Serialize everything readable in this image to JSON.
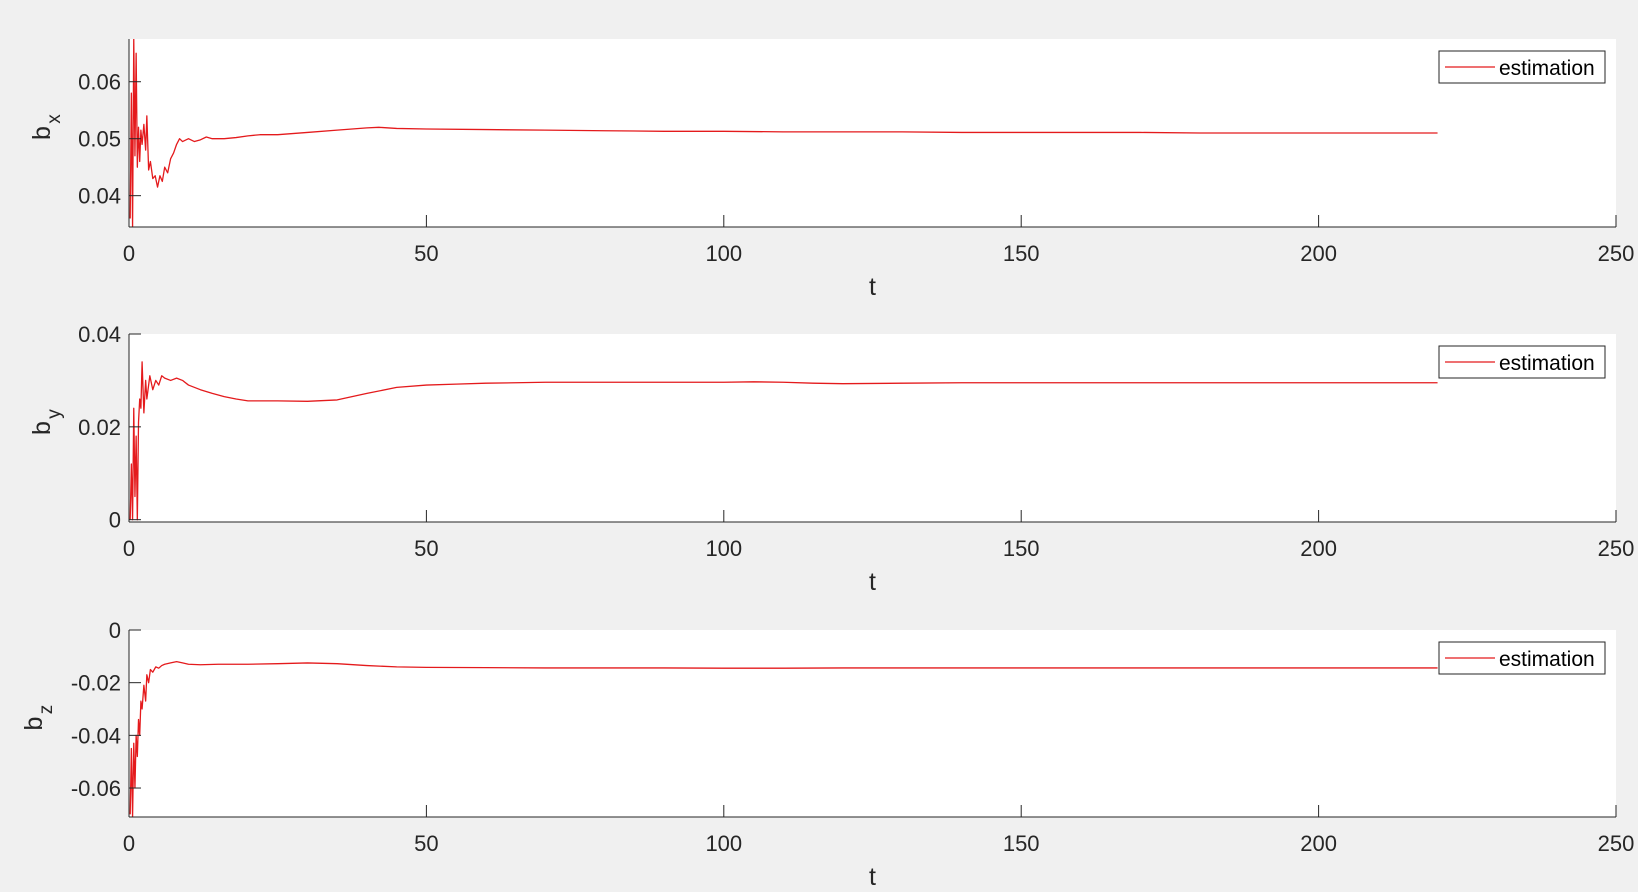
{
  "colors": {
    "figure_background": "#f0f0f0",
    "axes_background": "#ffffff",
    "axis": "#262626",
    "series": "#e41a1c"
  },
  "chart_data": [
    {
      "type": "line",
      "xlabel": "t",
      "ylabel": "b",
      "ylabel_sub": "x",
      "xlim": [
        0,
        250
      ],
      "ylim": [
        0.0345,
        0.0675
      ],
      "xticks": [
        0,
        50,
        100,
        150,
        200,
        250
      ],
      "yticks": [
        0.04,
        0.05,
        0.06
      ],
      "ytick_labels": [
        "0.04",
        "0.05",
        "0.06"
      ],
      "grid": false,
      "legend_position": "top-right",
      "series": [
        {
          "name": "estimation",
          "x": [
            0.2,
            0.4,
            0.6,
            0.8,
            1.0,
            1.2,
            1.4,
            1.6,
            1.8,
            2.0,
            2.2,
            2.5,
            2.8,
            3.0,
            3.3,
            3.6,
            4.0,
            4.4,
            4.8,
            5.2,
            5.6,
            6.0,
            6.5,
            7.0,
            7.5,
            8.0,
            8.5,
            9.0,
            10,
            11,
            12,
            13,
            14,
            16,
            18,
            20,
            22,
            25,
            30,
            35,
            40,
            42,
            45,
            50,
            60,
            70,
            80,
            90,
            100,
            110,
            120,
            130,
            140,
            150,
            160,
            170,
            180,
            190,
            200,
            210,
            220
          ],
          "values": [
            0.036,
            0.058,
            0.0345,
            0.0675,
            0.047,
            0.065,
            0.045,
            0.052,
            0.046,
            0.0515,
            0.049,
            0.0525,
            0.048,
            0.054,
            0.0445,
            0.046,
            0.043,
            0.0435,
            0.0415,
            0.0435,
            0.0425,
            0.045,
            0.044,
            0.0465,
            0.0475,
            0.049,
            0.05,
            0.0495,
            0.05,
            0.0495,
            0.0498,
            0.0503,
            0.05,
            0.05,
            0.0502,
            0.0505,
            0.0507,
            0.0507,
            0.0511,
            0.0515,
            0.0519,
            0.052,
            0.0518,
            0.0517,
            0.0516,
            0.0515,
            0.0514,
            0.0513,
            0.0513,
            0.0512,
            0.0512,
            0.0512,
            0.0511,
            0.0511,
            0.0511,
            0.0511,
            0.051,
            0.051,
            0.051,
            0.051,
            0.051
          ]
        }
      ]
    },
    {
      "type": "line",
      "xlabel": "t",
      "ylabel": "b",
      "ylabel_sub": "y",
      "xlim": [
        0,
        250
      ],
      "ylim": [
        -0.0005,
        0.04
      ],
      "xticks": [
        0,
        50,
        100,
        150,
        200,
        250
      ],
      "yticks": [
        0,
        0.02,
        0.04
      ],
      "ytick_labels": [
        "0",
        "0.02",
        "0.04"
      ],
      "grid": false,
      "legend_position": "top-right",
      "series": [
        {
          "name": "estimation",
          "x": [
            0.2,
            0.4,
            0.6,
            0.8,
            1.0,
            1.2,
            1.4,
            1.6,
            1.8,
            2.0,
            2.2,
            2.5,
            2.8,
            3.0,
            3.5,
            4.0,
            4.5,
            5.0,
            5.5,
            6.0,
            7.0,
            8.0,
            9.0,
            10,
            12,
            14,
            16,
            18,
            20,
            25,
            30,
            35,
            40,
            45,
            50,
            55,
            60,
            70,
            80,
            90,
            100,
            105,
            110,
            115,
            120,
            130,
            140,
            150,
            160,
            170,
            180,
            190,
            200,
            210,
            220
          ],
          "values": [
            0.0,
            0.012,
            0.0,
            0.024,
            0.005,
            0.018,
            0.0,
            0.021,
            0.026,
            0.024,
            0.034,
            0.023,
            0.03,
            0.026,
            0.031,
            0.028,
            0.03,
            0.029,
            0.031,
            0.0305,
            0.03,
            0.0305,
            0.03,
            0.029,
            0.028,
            0.0272,
            0.0265,
            0.026,
            0.0256,
            0.0256,
            0.0255,
            0.0258,
            0.0272,
            0.0285,
            0.029,
            0.0292,
            0.0294,
            0.0296,
            0.0296,
            0.0296,
            0.0296,
            0.0297,
            0.0296,
            0.0294,
            0.0293,
            0.0294,
            0.0295,
            0.0295,
            0.0295,
            0.0295,
            0.0295,
            0.0295,
            0.0295,
            0.0295,
            0.0295
          ]
        }
      ]
    },
    {
      "type": "line",
      "xlabel": "t",
      "ylabel": "b",
      "ylabel_sub": "z",
      "xlim": [
        0,
        250
      ],
      "ylim": [
        -0.071,
        0.0
      ],
      "xticks": [
        0,
        50,
        100,
        150,
        200,
        250
      ],
      "yticks": [
        -0.06,
        -0.04,
        -0.02,
        0
      ],
      "ytick_labels": [
        "-0.06",
        "-0.04",
        "-0.02",
        "0"
      ],
      "grid": false,
      "legend_position": "top-right",
      "series": [
        {
          "name": "estimation",
          "x": [
            0.2,
            0.4,
            0.6,
            0.8,
            1.0,
            1.2,
            1.4,
            1.6,
            1.8,
            2.0,
            2.2,
            2.5,
            2.8,
            3.0,
            3.3,
            3.6,
            4.0,
            4.5,
            5.0,
            5.5,
            6.0,
            7.0,
            8.0,
            9.0,
            10,
            12,
            15,
            20,
            25,
            30,
            35,
            40,
            45,
            50,
            60,
            70,
            80,
            90,
            100,
            110,
            120,
            130,
            140,
            150,
            160,
            170,
            180,
            190,
            200,
            210,
            220
          ],
          "values": [
            -0.07,
            -0.045,
            -0.071,
            -0.043,
            -0.06,
            -0.04,
            -0.048,
            -0.034,
            -0.04,
            -0.027,
            -0.03,
            -0.021,
            -0.027,
            -0.017,
            -0.02,
            -0.015,
            -0.016,
            -0.014,
            -0.0145,
            -0.0135,
            -0.013,
            -0.0125,
            -0.012,
            -0.0125,
            -0.013,
            -0.0132,
            -0.013,
            -0.013,
            -0.0128,
            -0.0125,
            -0.0128,
            -0.0135,
            -0.014,
            -0.0142,
            -0.0143,
            -0.0144,
            -0.0144,
            -0.0144,
            -0.0145,
            -0.0145,
            -0.0144,
            -0.0144,
            -0.0144,
            -0.0144,
            -0.0144,
            -0.0144,
            -0.0144,
            -0.0144,
            -0.0144,
            -0.0144,
            -0.0144
          ]
        }
      ]
    }
  ]
}
